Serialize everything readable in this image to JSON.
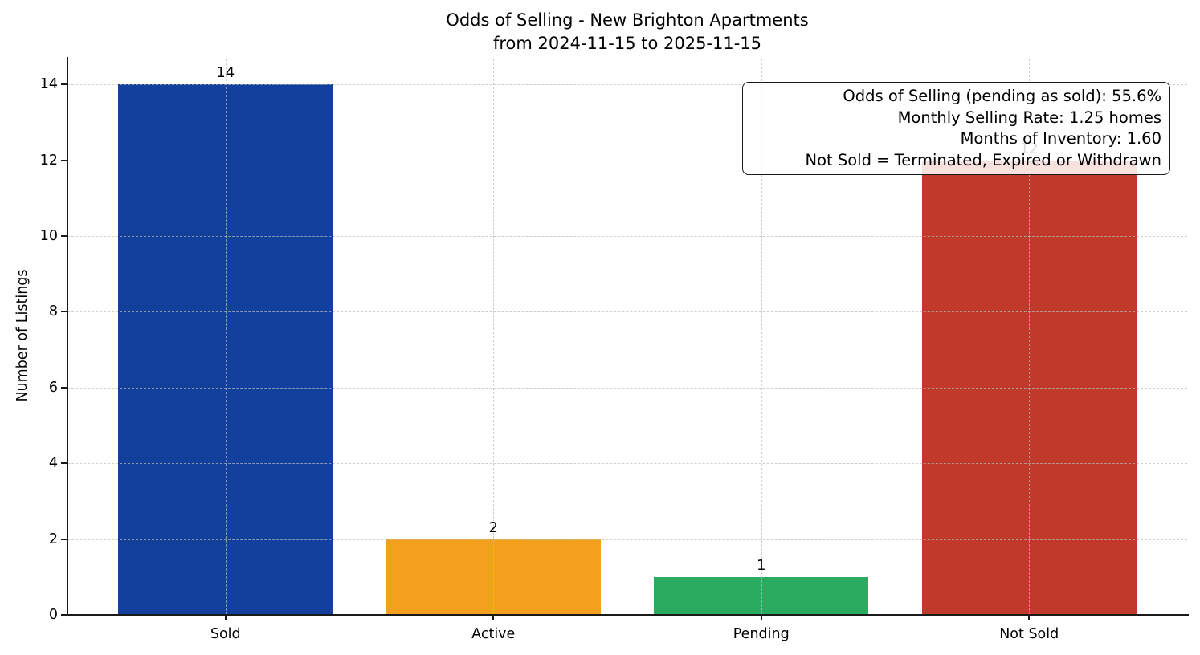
{
  "chart_data": {
    "type": "bar",
    "title": "Odds of Selling - New Brighton Apartments",
    "subtitle": "from 2024-11-15 to 2025-11-15",
    "categories": [
      "Sold",
      "Active",
      "Pending",
      "Not Sold"
    ],
    "values": [
      14,
      2,
      1,
      12
    ],
    "bar_colors": [
      "#14409d",
      "#f3a11c",
      "#2bab60",
      "#c0392b"
    ],
    "value_label_color": "#000000",
    "xlabel": "",
    "ylabel": "Number of Listings",
    "yticks": [
      0,
      2,
      4,
      6,
      8,
      10,
      12,
      14
    ],
    "ylim": [
      0,
      14.68
    ],
    "grid": {
      "style": "dashed",
      "horizontal": true,
      "vertical": true,
      "drawn_above_bars": true
    },
    "legend_position": "none",
    "annotation": {
      "position": "top-right",
      "text_align": "right",
      "lines": [
        "Odds of Selling (pending as sold): 55.6%",
        "Monthly Selling Rate: 1.25 homes",
        "Months of Inventory: 1.60",
        "Not Sold = Terminated, Expired or Withdrawn"
      ]
    }
  }
}
